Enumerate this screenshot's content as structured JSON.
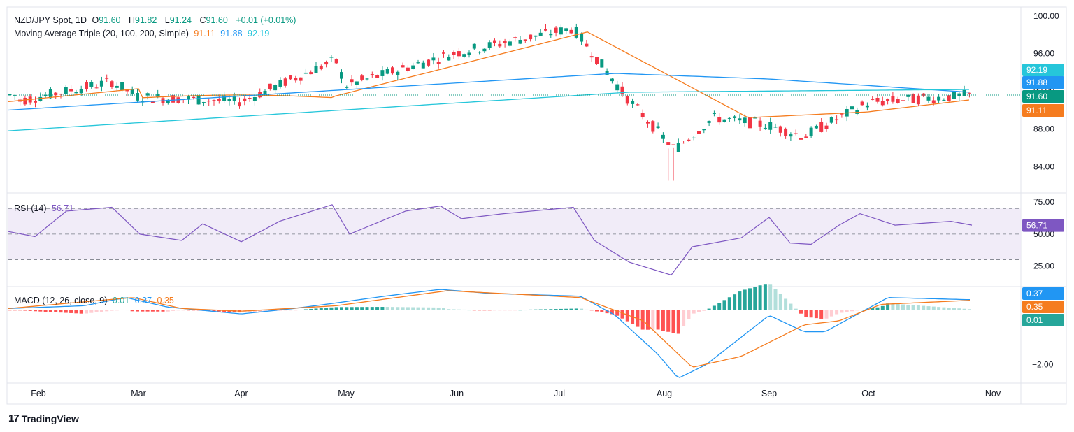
{
  "legend_main": {
    "symbol": "NZD/JPY Spot, 1D",
    "o_label": "O",
    "o_val": "91.60",
    "h_label": "H",
    "h_val": "91.82",
    "l_label": "L",
    "l_val": "91.24",
    "c_label": "C",
    "c_val": "91.60",
    "change": "+0.01 (+0.01%)",
    "ma_name": "Moving Average Triple (20, 100, 200, Simple)",
    "ma20": "91.11",
    "ma100": "91.88",
    "ma200": "92.19"
  },
  "legend_rsi": {
    "name": "RSI (14)",
    "value": "56.71"
  },
  "legend_macd": {
    "name": "MACD (12, 26, close, 9)",
    "hist": "0.01",
    "macd": "0.37",
    "signal": "0.35"
  },
  "brand": {
    "text": "TradingView"
  },
  "colors": {
    "up": "#089981",
    "down": "#f23645",
    "ma20": "#f57c1f",
    "ma100": "#2196f3",
    "ma200": "#26c6da",
    "rsi": "#7e57c2",
    "macd": "#2196f3",
    "signal": "#f57c1f",
    "hist_up": "#26a69a",
    "hist_up_light": "#b2dfdb",
    "hist_down": "#ff5252",
    "hist_down_light": "#ffcdd2",
    "price_tag": "#089981"
  },
  "chart_data": {
    "type": "line",
    "x_tick_labels": [
      "Feb",
      "Mar",
      "Apr",
      "May",
      "Jun",
      "Jul",
      "Aug",
      "Sep",
      "Oct",
      "Nov"
    ],
    "price_axis_labels": [
      "100.00",
      "96.00",
      "92.00",
      "88.00",
      "84.00"
    ],
    "price_ylim": [
      81.5,
      100.8
    ],
    "close_approx": [
      {
        "m": "Feb",
        "v": 90.9
      },
      {
        "m": "mid-Feb",
        "v": 92.4
      },
      {
        "m": "late-Feb",
        "v": 93.0
      },
      {
        "m": "Mar",
        "v": 91.4
      },
      {
        "m": "Apr",
        "v": 90.9
      },
      {
        "m": "late-Apr",
        "v": 95.3
      },
      {
        "m": "May",
        "v": 92.6
      },
      {
        "m": "Jun",
        "v": 96.1
      },
      {
        "m": "Jul",
        "v": 98.7
      },
      {
        "m": "late-Jul",
        "v": 91.0
      },
      {
        "m": "Aug",
        "v": 85.8
      },
      {
        "m": "mid-Aug",
        "v": 89.2
      },
      {
        "m": "Sep",
        "v": 88.4
      },
      {
        "m": "mid-Sep",
        "v": 87.2
      },
      {
        "m": "Oct",
        "v": 90.8
      },
      {
        "m": "late-Oct",
        "v": 91.6
      }
    ],
    "ma_last": {
      "ma20": 91.11,
      "ma100": 91.88,
      "ma200": 92.19
    },
    "last_close": 91.6,
    "price_tags": [
      "92.19",
      "91.88",
      "91.60",
      "91.11"
    ],
    "rsi_axis_labels": [
      "75.00",
      "50.00",
      "25.00"
    ],
    "rsi_ylim": [
      10,
      80
    ],
    "rsi_band": [
      30,
      70
    ],
    "rsi_last": 56.71,
    "rsi_tag": "56.71",
    "macd_axis_labels": [
      "-2.00"
    ],
    "macd_ylim": [
      -2.6,
      0.8
    ],
    "macd_last": {
      "macd": 0.37,
      "signal": 0.35,
      "hist": 0.01
    },
    "macd_tags": [
      "0.37",
      "0.35",
      "0.01"
    ],
    "grid": false
  }
}
